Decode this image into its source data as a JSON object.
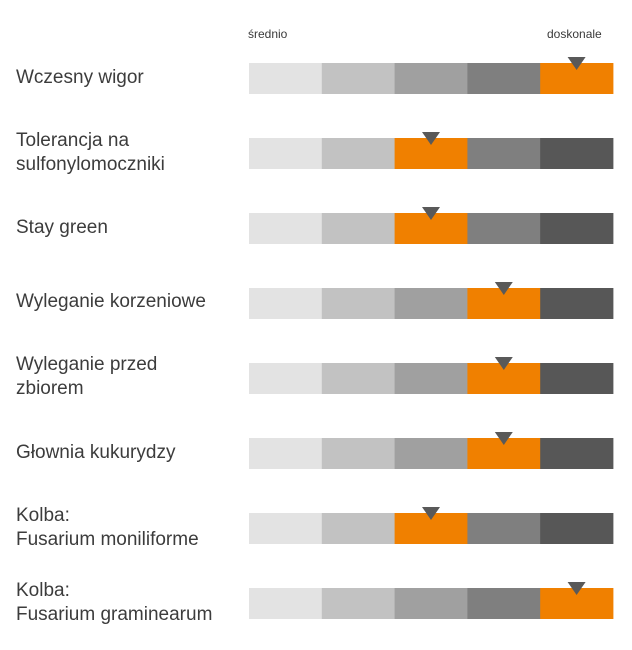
{
  "chart_data": {
    "type": "rating-bars",
    "scale": {
      "low_label": "średnio",
      "high_label": "doskonale",
      "levels": 5
    },
    "segment_colors": [
      "#e3e3e3",
      "#c2c2c2",
      "#a0a0a0",
      "#7f7f7f",
      "#575757"
    ],
    "highlight_color": "#f08000",
    "marker_color": "#595959",
    "rows": [
      {
        "label": "Wczesny wigor",
        "value": 5
      },
      {
        "label": "Tolerancja na\nsulfonylomoczniki",
        "value": 3
      },
      {
        "label": "Stay green",
        "value": 3
      },
      {
        "label": "Wyleganie korzeniowe",
        "value": 4
      },
      {
        "label": "Wyleganie przed\nzbiorem",
        "value": 4
      },
      {
        "label": "Głownia kukurydzy",
        "value": 4
      },
      {
        "label": "Kolba:\nFusarium moniliforme",
        "value": 3
      },
      {
        "label": "Kolba:\nFusarium graminearum",
        "value": 5
      }
    ]
  }
}
